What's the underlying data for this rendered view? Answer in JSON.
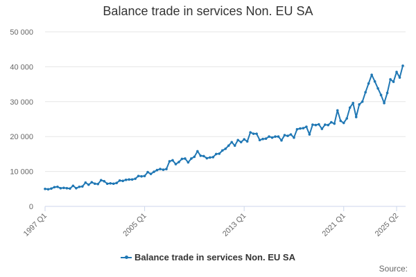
{
  "chart_data": {
    "type": "line",
    "title": "Balance trade in services Non. EU SA",
    "xlabel": "",
    "ylabel": "",
    "ylim": [
      0,
      50000
    ],
    "ytick_values": [
      0,
      10000,
      20000,
      30000,
      40000,
      50000
    ],
    "ytick_labels": [
      "0",
      "10 000",
      "20 000",
      "30 000",
      "40 000",
      "50 000"
    ],
    "xtick_labels": [
      "1997 Q1",
      "2005 Q1",
      "2013 Q1",
      "2021 Q1",
      "2025 Q2"
    ],
    "xtick_indices": [
      0,
      32,
      64,
      96,
      113
    ],
    "grid": true,
    "legend": "bottom-center",
    "series": [
      {
        "name": "Balance trade in services Non. EU SA",
        "color": "#1f77b4",
        "values": [
          5000,
          4900,
          5100,
          5500,
          5600,
          5200,
          5300,
          5200,
          5100,
          5900,
          5200,
          5600,
          5700,
          6800,
          6200,
          6900,
          6500,
          6400,
          7500,
          7200,
          6500,
          6600,
          6500,
          6700,
          7400,
          7300,
          7600,
          7700,
          7700,
          7900,
          8700,
          8600,
          8700,
          9800,
          9300,
          9900,
          10400,
          10700,
          10500,
          10700,
          12900,
          13200,
          12100,
          12700,
          13600,
          13700,
          12600,
          13700,
          14200,
          15800,
          14500,
          14400,
          13800,
          14000,
          14100,
          15000,
          15100,
          16000,
          16500,
          17400,
          18400,
          17400,
          19000,
          18400,
          19200,
          18600,
          21200,
          20800,
          20800,
          19000,
          19300,
          19400,
          20000,
          19700,
          20000,
          20000,
          18900,
          20400,
          20200,
          20600,
          19700,
          22100,
          22300,
          22400,
          22800,
          20600,
          23400,
          23300,
          23500,
          22200,
          23400,
          23300,
          24100,
          23700,
          27500,
          24500,
          23900,
          25200,
          28300,
          29600,
          25600,
          29200,
          30000,
          32700,
          35200,
          37700,
          35800,
          33800,
          31900,
          29600,
          32500,
          36400,
          35700,
          38500,
          36900,
          40300
        ]
      }
    ]
  },
  "legend_label": "Balance trade in services Non. EU SA",
  "credits": "Source:"
}
